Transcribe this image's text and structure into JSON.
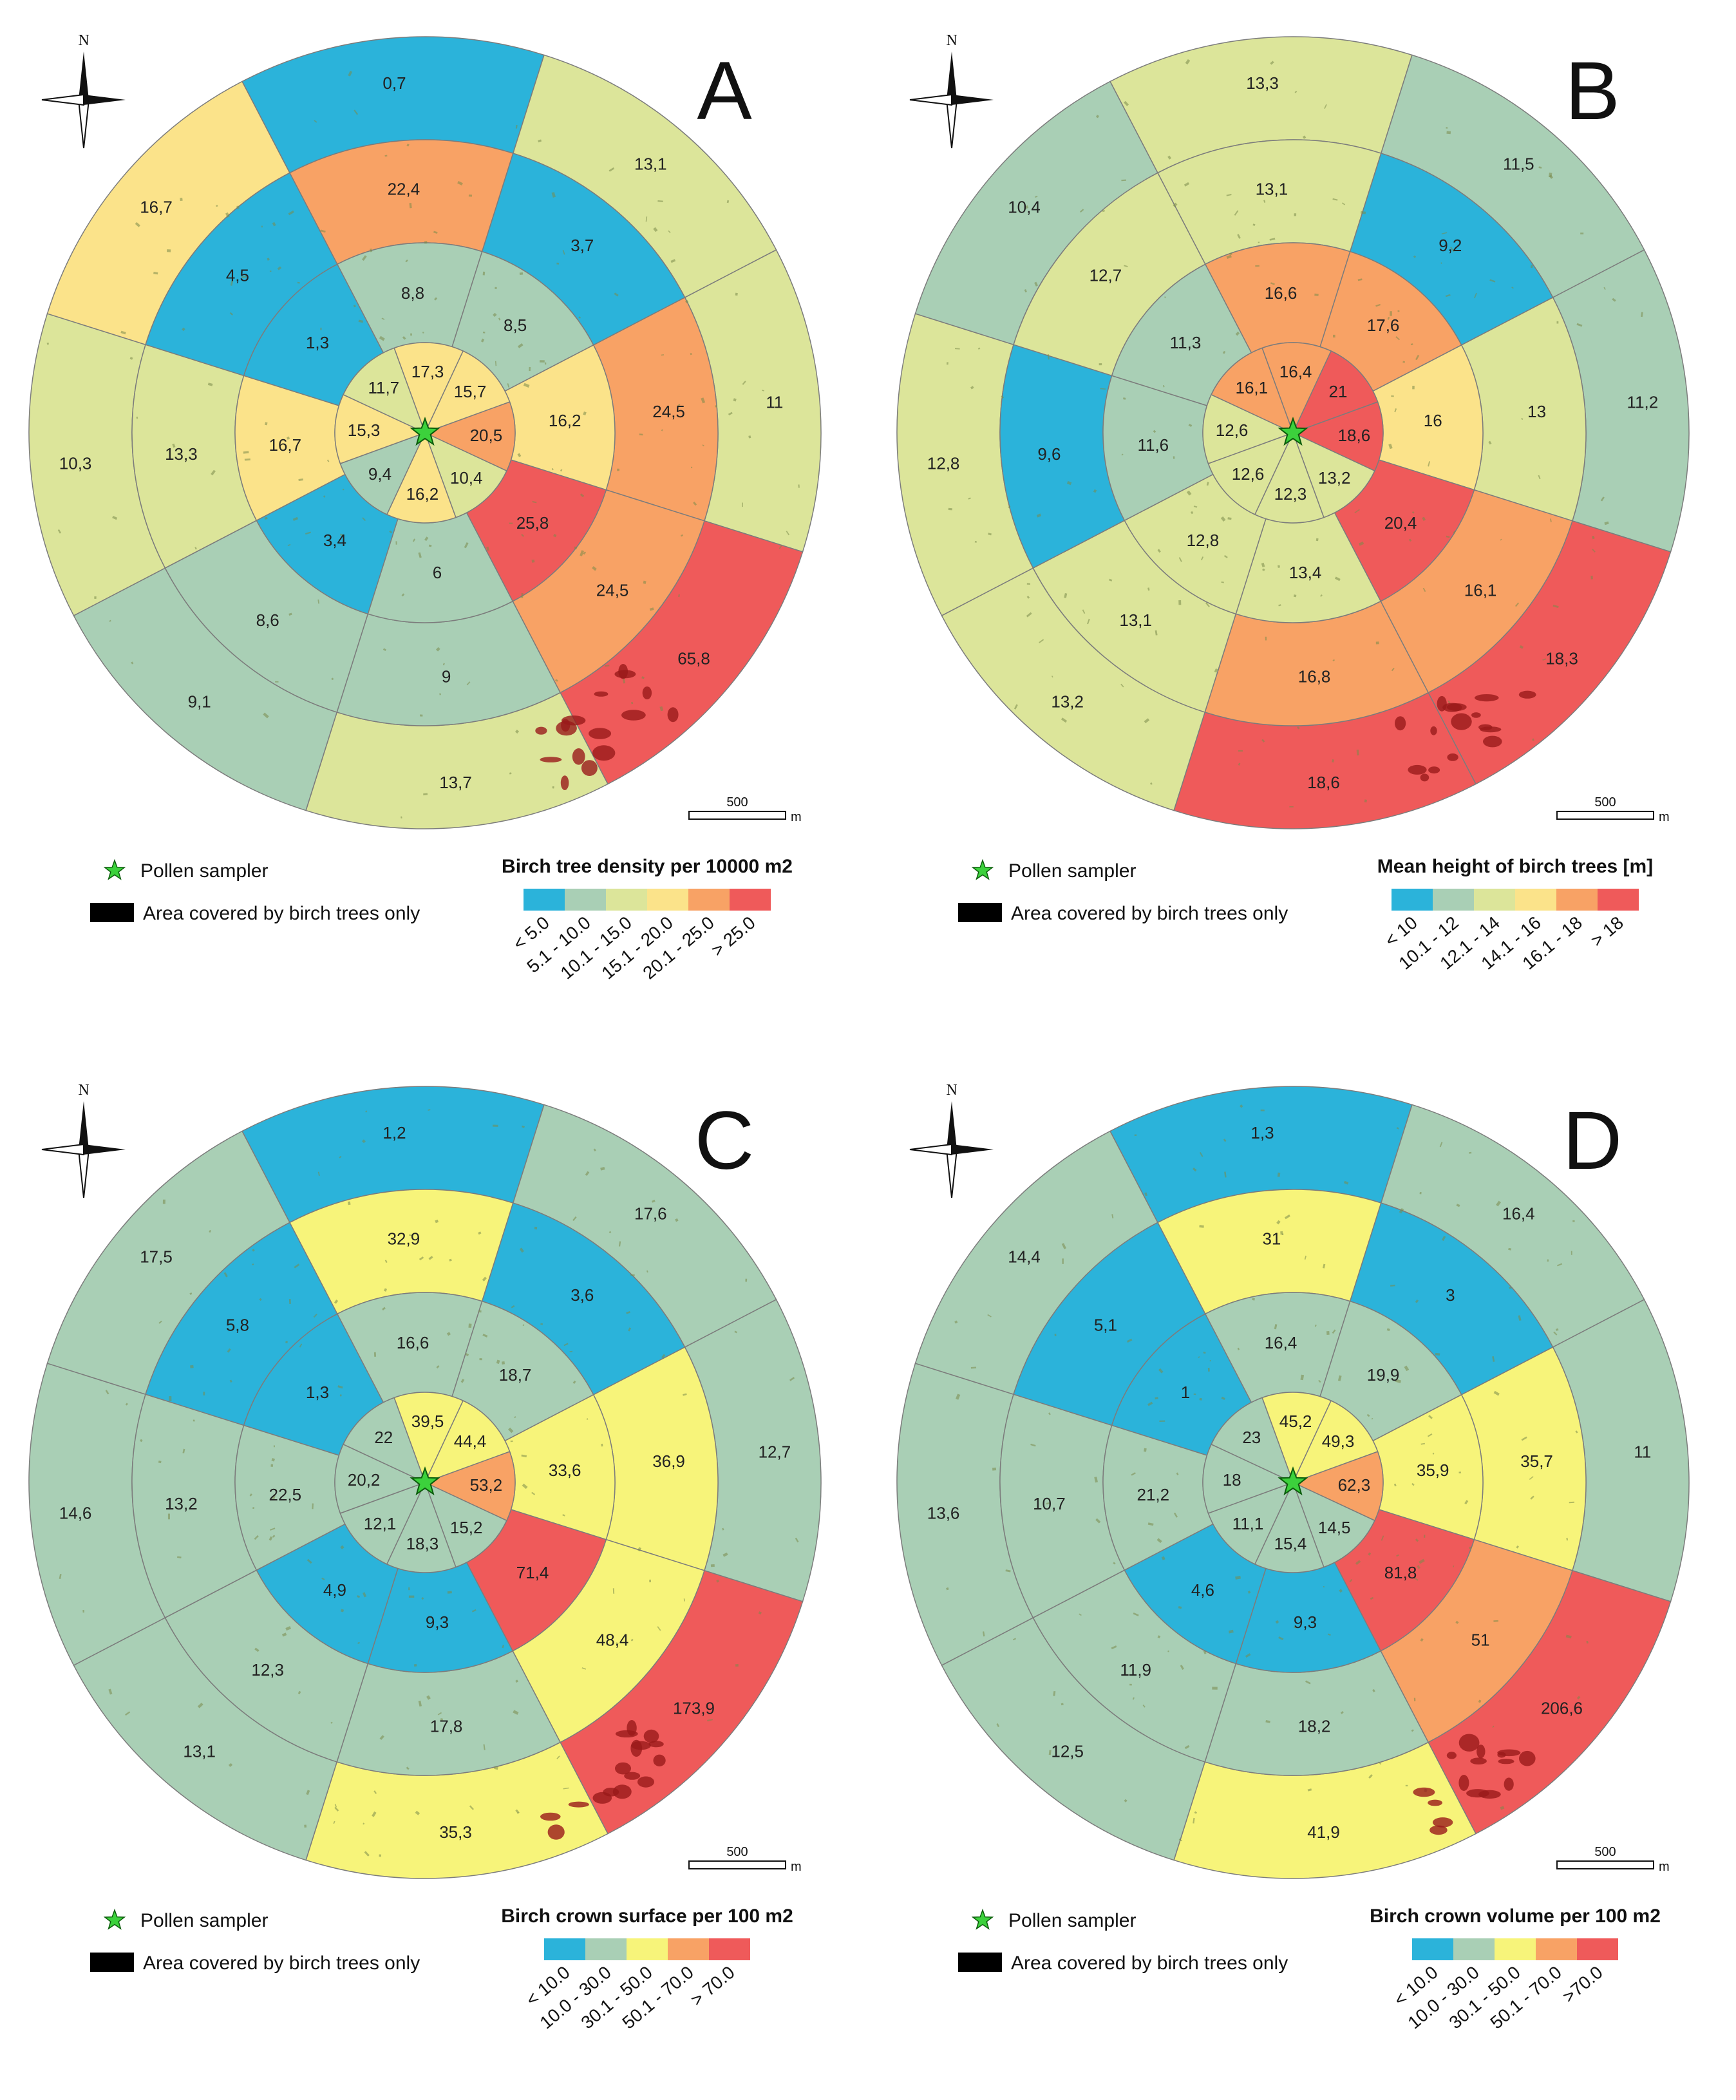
{
  "figure": {
    "north_label": "N",
    "legend_sampler": "Pollen sampler",
    "legend_area": "Area covered by birch trees only",
    "scale_value": "500",
    "scale_unit": "m"
  },
  "palette": {
    "c1": "#2bb3da",
    "c2": "#a9cfb5",
    "c3": "#dce59a",
    "c4": "#fbe38a",
    "c5": "#f8a265",
    "c6": "#ef5a5a",
    "c3_bright": "#f7f47a",
    "star": "#3cd13c",
    "ring_line": "#7c7c7c",
    "tree_blob": "#7a8a4a",
    "birch_blob": "#9a1a1a"
  },
  "chart_data": [
    {
      "type": "polar-sector-map",
      "panel": "A",
      "title": "Birch tree density per 10000 m2",
      "classes": [
        "< 5.0",
        "5.1 - 10.0",
        "10.1 - 15.0",
        "15.1 - 20.0",
        "20.1 - 25.0",
        "> 25.0"
      ],
      "class_colors": [
        "c1",
        "c2",
        "c3",
        "c4",
        "c5",
        "c6"
      ],
      "rings": [
        {
          "ring": "inner",
          "sectors": [
            {
              "dir": "N",
              "value": "17,3",
              "class": 3
            },
            {
              "dir": "NE",
              "value": "15,7",
              "class": 3
            },
            {
              "dir": "E",
              "value": "20,5",
              "class": 4
            },
            {
              "dir": "SE",
              "value": "10,4",
              "class": 2
            },
            {
              "dir": "S",
              "value": "16,2",
              "class": 3
            },
            {
              "dir": "SW",
              "value": "9,4",
              "class": 1
            },
            {
              "dir": "W",
              "value": "15,3",
              "class": 3
            },
            {
              "dir": "NW",
              "value": "11,7",
              "class": 2
            }
          ]
        },
        {
          "ring": "middle",
          "sectors": [
            {
              "dir": "N",
              "value": "8,8",
              "class": 1
            },
            {
              "dir": "NE",
              "value": "8,5",
              "class": 1
            },
            {
              "dir": "E",
              "value": "16,2",
              "class": 3
            },
            {
              "dir": "SE",
              "value": "25,8",
              "class": 5
            },
            {
              "dir": "S",
              "value": "6",
              "class": 1
            },
            {
              "dir": "SW",
              "value": "3,4",
              "class": 0
            },
            {
              "dir": "W",
              "value": "16,7",
              "class": 3
            },
            {
              "dir": "NW",
              "value": "1,3",
              "class": 0
            }
          ]
        },
        {
          "ring": "second",
          "sectors": [
            {
              "dir": "N",
              "value": "22,4",
              "class": 4
            },
            {
              "dir": "NE",
              "value": "3,7",
              "class": 0
            },
            {
              "dir": "E",
              "value": "24,5",
              "class": 4
            },
            {
              "dir": "SE",
              "value": "24,5",
              "class": 4
            },
            {
              "dir": "S",
              "value": "9",
              "class": 1
            },
            {
              "dir": "SW",
              "value": "8,6",
              "class": 1
            },
            {
              "dir": "W",
              "value": "13,3",
              "class": 2
            },
            {
              "dir": "NW",
              "value": "4,5",
              "class": 0
            }
          ]
        },
        {
          "ring": "outer",
          "sectors": [
            {
              "dir": "N",
              "value": "0,7",
              "class": 0
            },
            {
              "dir": "NE",
              "value": "13,1",
              "class": 2
            },
            {
              "dir": "E",
              "value": "11",
              "class": 2
            },
            {
              "dir": "SE",
              "value": "65,8",
              "class": 5
            },
            {
              "dir": "S",
              "value": "13,7",
              "class": 2
            },
            {
              "dir": "SW",
              "value": "9,1",
              "class": 1
            },
            {
              "dir": "W",
              "value": "10,3",
              "class": 2
            },
            {
              "dir": "NW",
              "value": "16,7",
              "class": 3
            }
          ]
        }
      ]
    },
    {
      "type": "polar-sector-map",
      "panel": "B",
      "title": "Mean height of birch trees [m]",
      "classes": [
        "< 10",
        "10.1 - 12",
        "12.1 - 14",
        "14.1 - 16",
        "16.1 - 18",
        "> 18"
      ],
      "class_colors": [
        "c1",
        "c2",
        "c3",
        "c4",
        "c5",
        "c6"
      ],
      "rings": [
        {
          "ring": "inner",
          "sectors": [
            {
              "dir": "N",
              "value": "16,4",
              "class": 4
            },
            {
              "dir": "NE",
              "value": "21",
              "class": 5
            },
            {
              "dir": "E",
              "value": "18,6",
              "class": 5
            },
            {
              "dir": "SE",
              "value": "13,2",
              "class": 2
            },
            {
              "dir": "S",
              "value": "12,3",
              "class": 2
            },
            {
              "dir": "SW",
              "value": "12,6",
              "class": 2
            },
            {
              "dir": "W",
              "value": "12,6",
              "class": 2
            },
            {
              "dir": "NW",
              "value": "16,1",
              "class": 4
            }
          ]
        },
        {
          "ring": "middle",
          "sectors": [
            {
              "dir": "N",
              "value": "16,6",
              "class": 4
            },
            {
              "dir": "NE",
              "value": "17,6",
              "class": 4
            },
            {
              "dir": "E",
              "value": "16",
              "class": 3
            },
            {
              "dir": "SE",
              "value": "20,4",
              "class": 5
            },
            {
              "dir": "S",
              "value": "13,4",
              "class": 2
            },
            {
              "dir": "SW",
              "value": "12,8",
              "class": 2
            },
            {
              "dir": "W",
              "value": "11,6",
              "class": 1
            },
            {
              "dir": "NW",
              "value": "11,3",
              "class": 1
            }
          ]
        },
        {
          "ring": "second",
          "sectors": [
            {
              "dir": "N",
              "value": "13,1",
              "class": 2
            },
            {
              "dir": "NE",
              "value": "9,2",
              "class": 0
            },
            {
              "dir": "E",
              "value": "13",
              "class": 2
            },
            {
              "dir": "SE",
              "value": "16,1",
              "class": 4
            },
            {
              "dir": "S",
              "value": "16,8",
              "class": 4
            },
            {
              "dir": "SW",
              "value": "13,1",
              "class": 2
            },
            {
              "dir": "W",
              "value": "9,6",
              "class": 0
            },
            {
              "dir": "NW",
              "value": "12,7",
              "class": 2
            }
          ]
        },
        {
          "ring": "outer",
          "sectors": [
            {
              "dir": "N",
              "value": "13,3",
              "class": 2
            },
            {
              "dir": "NE",
              "value": "11,5",
              "class": 1
            },
            {
              "dir": "E",
              "value": "11,2",
              "class": 1
            },
            {
              "dir": "SE",
              "value": "18,3",
              "class": 5
            },
            {
              "dir": "S",
              "value": "18,6",
              "class": 5
            },
            {
              "dir": "SW",
              "value": "13,2",
              "class": 2
            },
            {
              "dir": "W",
              "value": "12,8",
              "class": 2
            },
            {
              "dir": "NW",
              "value": "10,4",
              "class": 1
            }
          ]
        }
      ]
    },
    {
      "type": "polar-sector-map",
      "panel": "C",
      "title": "Birch crown surface per 100 m2",
      "classes": [
        "< 10.0",
        "10.0 - 30.0",
        "30.1 - 50.0",
        "50.1 - 70.0",
        "> 70.0"
      ],
      "class_colors": [
        "c1",
        "c2",
        "c3_bright",
        "c5",
        "c6"
      ],
      "rings": [
        {
          "ring": "inner",
          "sectors": [
            {
              "dir": "N",
              "value": "39,5",
              "class": 2
            },
            {
              "dir": "NE",
              "value": "44,4",
              "class": 2
            },
            {
              "dir": "E",
              "value": "53,2",
              "class": 3
            },
            {
              "dir": "SE",
              "value": "15,2",
              "class": 1
            },
            {
              "dir": "S",
              "value": "18,3",
              "class": 1
            },
            {
              "dir": "SW",
              "value": "12,1",
              "class": 1
            },
            {
              "dir": "W",
              "value": "20,2",
              "class": 1
            },
            {
              "dir": "NW",
              "value": "22",
              "class": 1
            }
          ]
        },
        {
          "ring": "middle",
          "sectors": [
            {
              "dir": "N",
              "value": "16,6",
              "class": 1
            },
            {
              "dir": "NE",
              "value": "18,7",
              "class": 1
            },
            {
              "dir": "E",
              "value": "33,6",
              "class": 2
            },
            {
              "dir": "SE",
              "value": "71,4",
              "class": 4
            },
            {
              "dir": "S",
              "value": "9,3",
              "class": 0
            },
            {
              "dir": "SW",
              "value": "4,9",
              "class": 0
            },
            {
              "dir": "W",
              "value": "22,5",
              "class": 1
            },
            {
              "dir": "NW",
              "value": "1,3",
              "class": 0
            }
          ]
        },
        {
          "ring": "second",
          "sectors": [
            {
              "dir": "N",
              "value": "32,9",
              "class": 2
            },
            {
              "dir": "NE",
              "value": "3,6",
              "class": 0
            },
            {
              "dir": "E",
              "value": "36,9",
              "class": 2
            },
            {
              "dir": "SE",
              "value": "48,4",
              "class": 2
            },
            {
              "dir": "S",
              "value": "17,8",
              "class": 1
            },
            {
              "dir": "SW",
              "value": "12,3",
              "class": 1
            },
            {
              "dir": "W",
              "value": "13,2",
              "class": 1
            },
            {
              "dir": "NW",
              "value": "5,8",
              "class": 0
            }
          ]
        },
        {
          "ring": "outer",
          "sectors": [
            {
              "dir": "N",
              "value": "1,2",
              "class": 0
            },
            {
              "dir": "NE",
              "value": "17,6",
              "class": 1
            },
            {
              "dir": "E",
              "value": "12,7",
              "class": 1
            },
            {
              "dir": "SE",
              "value": "173,9",
              "class": 4
            },
            {
              "dir": "S",
              "value": "35,3",
              "class": 2
            },
            {
              "dir": "SW",
              "value": "13,1",
              "class": 1
            },
            {
              "dir": "W",
              "value": "14,6",
              "class": 1
            },
            {
              "dir": "NW",
              "value": "17,5",
              "class": 1
            }
          ]
        }
      ]
    },
    {
      "type": "polar-sector-map",
      "panel": "D",
      "title": "Birch crown volume per 100 m2",
      "classes": [
        "< 10.0",
        "10.0 - 30.0",
        "30.1 - 50.0",
        "50.1 - 70.0",
        ">70.0"
      ],
      "class_colors": [
        "c1",
        "c2",
        "c3_bright",
        "c5",
        "c6"
      ],
      "rings": [
        {
          "ring": "inner",
          "sectors": [
            {
              "dir": "N",
              "value": "45,2",
              "class": 2
            },
            {
              "dir": "NE",
              "value": "49,3",
              "class": 2
            },
            {
              "dir": "E",
              "value": "62,3",
              "class": 3
            },
            {
              "dir": "SE",
              "value": "14,5",
              "class": 1
            },
            {
              "dir": "S",
              "value": "15,4",
              "class": 1
            },
            {
              "dir": "SW",
              "value": "11,1",
              "class": 1
            },
            {
              "dir": "W",
              "value": "18",
              "class": 1
            },
            {
              "dir": "NW",
              "value": "23",
              "class": 1
            }
          ]
        },
        {
          "ring": "middle",
          "sectors": [
            {
              "dir": "N",
              "value": "16,4",
              "class": 1
            },
            {
              "dir": "NE",
              "value": "19,9",
              "class": 1
            },
            {
              "dir": "E",
              "value": "35,9",
              "class": 2
            },
            {
              "dir": "SE",
              "value": "81,8",
              "class": 4
            },
            {
              "dir": "S",
              "value": "9,3",
              "class": 0
            },
            {
              "dir": "SW",
              "value": "4,6",
              "class": 0
            },
            {
              "dir": "W",
              "value": "21,2",
              "class": 1
            },
            {
              "dir": "NW",
              "value": "1",
              "class": 0
            }
          ]
        },
        {
          "ring": "second",
          "sectors": [
            {
              "dir": "N",
              "value": "31",
              "class": 2
            },
            {
              "dir": "NE",
              "value": "3",
              "class": 0
            },
            {
              "dir": "E",
              "value": "35,7",
              "class": 2
            },
            {
              "dir": "SE",
              "value": "51",
              "class": 3
            },
            {
              "dir": "S",
              "value": "18,2",
              "class": 1
            },
            {
              "dir": "SW",
              "value": "11,9",
              "class": 1
            },
            {
              "dir": "W",
              "value": "10,7",
              "class": 1
            },
            {
              "dir": "NW",
              "value": "5,1",
              "class": 0
            }
          ]
        },
        {
          "ring": "outer",
          "sectors": [
            {
              "dir": "N",
              "value": "1,3",
              "class": 0
            },
            {
              "dir": "NE",
              "value": "16,4",
              "class": 1
            },
            {
              "dir": "E",
              "value": "11",
              "class": 1
            },
            {
              "dir": "SE",
              "value": "206,6",
              "class": 4
            },
            {
              "dir": "S",
              "value": "41,9",
              "class": 2
            },
            {
              "dir": "SW",
              "value": "12,5",
              "class": 1
            },
            {
              "dir": "W",
              "value": "13,6",
              "class": 1
            },
            {
              "dir": "NW",
              "value": "14,4",
              "class": 1
            }
          ]
        }
      ]
    }
  ]
}
